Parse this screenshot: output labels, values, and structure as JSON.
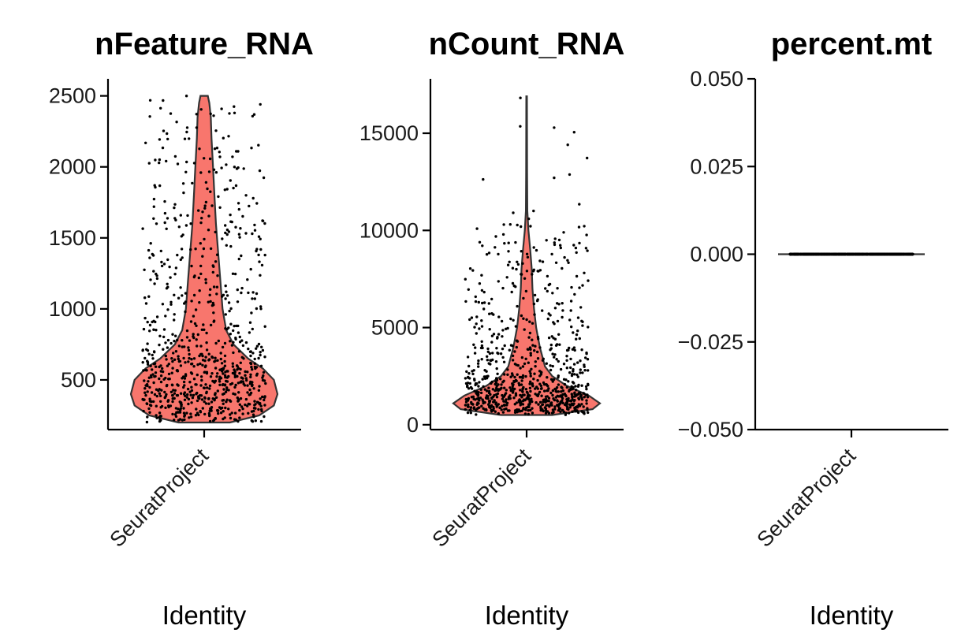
{
  "chart_data": [
    {
      "type": "violin",
      "title": "nFeature_RNA",
      "xlabel": "Identity",
      "ylabel": "",
      "categories": [
        "SeuratProject"
      ],
      "ylim": [
        150,
        2620
      ],
      "yticks": [
        500,
        1000,
        1500,
        2000,
        2500
      ],
      "ytick_labels": [
        "500",
        "1000",
        "1500",
        "2000",
        "2500"
      ],
      "fill": "#F8766D",
      "points_shown": true,
      "point_count": 850,
      "data_min": 200,
      "data_max": 2500,
      "density_profile": [
        {
          "y": 200,
          "w": 0.35
        },
        {
          "y": 250,
          "w": 0.75
        },
        {
          "y": 320,
          "w": 0.95
        },
        {
          "y": 400,
          "w": 1.0
        },
        {
          "y": 500,
          "w": 0.95
        },
        {
          "y": 580,
          "w": 0.8
        },
        {
          "y": 650,
          "w": 0.6
        },
        {
          "y": 750,
          "w": 0.4
        },
        {
          "y": 850,
          "w": 0.3
        },
        {
          "y": 1000,
          "w": 0.25
        },
        {
          "y": 1200,
          "w": 0.22
        },
        {
          "y": 1400,
          "w": 0.19
        },
        {
          "y": 1600,
          "w": 0.16
        },
        {
          "y": 1800,
          "w": 0.14
        },
        {
          "y": 2000,
          "w": 0.12
        },
        {
          "y": 2200,
          "w": 0.1
        },
        {
          "y": 2350,
          "w": 0.09
        },
        {
          "y": 2450,
          "w": 0.07
        },
        {
          "y": 2500,
          "w": 0.05
        }
      ]
    },
    {
      "type": "violin",
      "title": "nCount_RNA",
      "xlabel": "Identity",
      "ylabel": "",
      "categories": [
        "SeuratProject"
      ],
      "ylim": [
        -250,
        17800
      ],
      "yticks": [
        0,
        5000,
        10000,
        15000
      ],
      "ytick_labels": [
        "0",
        "5000",
        "10000",
        "15000"
      ],
      "fill": "#F8766D",
      "points_shown": true,
      "point_count": 850,
      "data_min": 500,
      "data_max": 16900,
      "density_profile": [
        {
          "y": 500,
          "w": 0.35
        },
        {
          "y": 800,
          "w": 0.9
        },
        {
          "y": 1100,
          "w": 1.0
        },
        {
          "y": 1500,
          "w": 0.85
        },
        {
          "y": 2000,
          "w": 0.55
        },
        {
          "y": 2500,
          "w": 0.35
        },
        {
          "y": 3000,
          "w": 0.25
        },
        {
          "y": 4000,
          "w": 0.18
        },
        {
          "y": 5000,
          "w": 0.13
        },
        {
          "y": 6000,
          "w": 0.1
        },
        {
          "y": 7000,
          "w": 0.08
        },
        {
          "y": 8000,
          "w": 0.07
        },
        {
          "y": 9000,
          "w": 0.05
        },
        {
          "y": 10000,
          "w": 0.025
        },
        {
          "y": 11000,
          "w": 0.01
        },
        {
          "y": 13000,
          "w": 0.006
        },
        {
          "y": 16900,
          "w": 0.004
        }
      ]
    },
    {
      "type": "violin",
      "title": "percent.mt",
      "xlabel": "Identity",
      "ylabel": "",
      "categories": [
        "SeuratProject"
      ],
      "ylim": [
        -0.05,
        0.05
      ],
      "yticks": [
        -0.05,
        -0.025,
        0.0,
        0.025,
        0.05
      ],
      "ytick_labels": [
        "−0.050",
        "−0.025",
        "0.000",
        "0.025",
        "0.050"
      ],
      "fill": "#F8766D",
      "points_shown": true,
      "point_count": 850,
      "data_min": 0,
      "data_max": 0,
      "all_values": 0
    }
  ]
}
